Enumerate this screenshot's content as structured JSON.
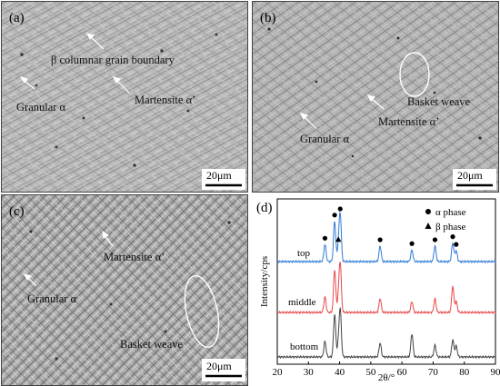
{
  "panels": {
    "a": {
      "label": "(a)",
      "annotations": {
        "boundary": "β columnar grain boundary",
        "granular": "Granular α",
        "martensite": "Martensite α’"
      },
      "scale": "20μm"
    },
    "b": {
      "label": "(b)",
      "annotations": {
        "basket": "Basket weave",
        "martensite": "Martensite α’",
        "granular": "Granular α"
      },
      "scale": "20μm"
    },
    "c": {
      "label": "(c)",
      "annotations": {
        "martensite": "Martensite α’",
        "granular": "Granular α",
        "basket": "Basket weave"
      },
      "scale": "20μm"
    },
    "d": {
      "label": "(d)"
    }
  },
  "chart_data": {
    "type": "line",
    "xlabel": "2θ/°",
    "ylabel": "Intensity/cps",
    "xlim": [
      20,
      90
    ],
    "xticks": [
      20,
      30,
      40,
      50,
      60,
      70,
      80,
      90
    ],
    "legend": [
      {
        "marker": "circle",
        "label": "α phase"
      },
      {
        "marker": "triangle",
        "label": "β phase"
      }
    ],
    "legend_position": "top-right",
    "series": [
      {
        "name": "top",
        "color": "#2f7bd6",
        "peaks": [
          [
            35.3,
            0.22
          ],
          [
            38.4,
            0.52
          ],
          [
            39.6,
            0.18
          ],
          [
            40.2,
            0.6
          ],
          [
            53.0,
            0.2
          ],
          [
            63.2,
            0.15
          ],
          [
            70.6,
            0.2
          ],
          [
            76.3,
            0.24
          ],
          [
            77.4,
            0.14
          ]
        ]
      },
      {
        "name": "middle",
        "color": "#e8484a",
        "peaks": [
          [
            35.3,
            0.2
          ],
          [
            38.4,
            0.55
          ],
          [
            39.6,
            0.18
          ],
          [
            40.2,
            0.62
          ],
          [
            53.0,
            0.18
          ],
          [
            63.2,
            0.14
          ],
          [
            70.6,
            0.17
          ],
          [
            76.3,
            0.34
          ],
          [
            77.4,
            0.14
          ]
        ]
      },
      {
        "name": "bottom",
        "color": "#444444",
        "peaks": [
          [
            35.3,
            0.2
          ],
          [
            38.4,
            0.55
          ],
          [
            39.6,
            0.15
          ],
          [
            40.2,
            0.6
          ],
          [
            53.0,
            0.18
          ],
          [
            63.2,
            0.3
          ],
          [
            70.6,
            0.15
          ],
          [
            76.3,
            0.22
          ],
          [
            77.4,
            0.14
          ]
        ]
      }
    ],
    "alpha_markers_2theta": [
      35.3,
      38.4,
      40.2,
      53.0,
      63.2,
      70.6,
      76.3,
      77.4
    ],
    "beta_markers_2theta": [
      39.6
    ]
  }
}
